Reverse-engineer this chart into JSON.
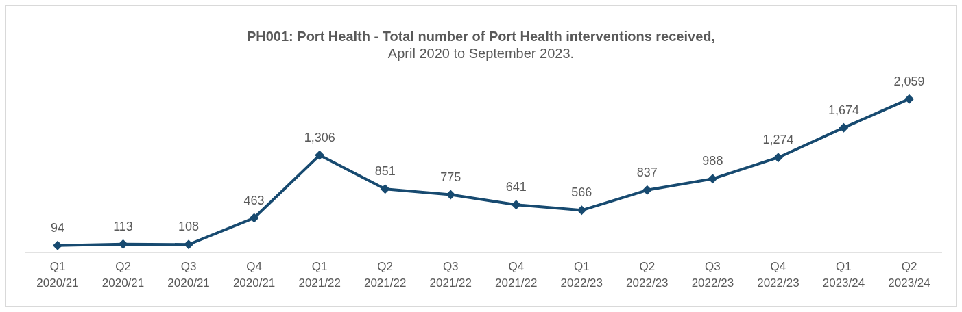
{
  "chart_data": {
    "type": "line",
    "title": "PH001: Port Health - Total number of Port Health interventions received,",
    "subtitle": "April 2020 to September 2023.",
    "categories": [
      "Q1\n2020/21",
      "Q2\n2020/21",
      "Q3\n2020/21",
      "Q4\n2020/21",
      "Q1\n2021/22",
      "Q2\n2021/22",
      "Q3\n2021/22",
      "Q4\n2021/22",
      "Q1\n2022/23",
      "Q2\n2022/23",
      "Q3\n2022/23",
      "Q4\n2022/23",
      "Q1\n2023/24",
      "Q2\n2023/24"
    ],
    "series": [
      {
        "color": "#174a70",
        "values": [
          94,
          113,
          108,
          463,
          1306,
          851,
          775,
          641,
          566,
          837,
          988,
          1274,
          1674,
          2059
        ],
        "value_labels": [
          "94",
          "113",
          "108",
          "463",
          "1,306",
          "851",
          "775",
          "641",
          "566",
          "837",
          "988",
          "1,274",
          "1,674",
          "2,059"
        ]
      }
    ],
    "marker": "diamond",
    "line_style": "solid",
    "grid": false,
    "legend": false
  }
}
